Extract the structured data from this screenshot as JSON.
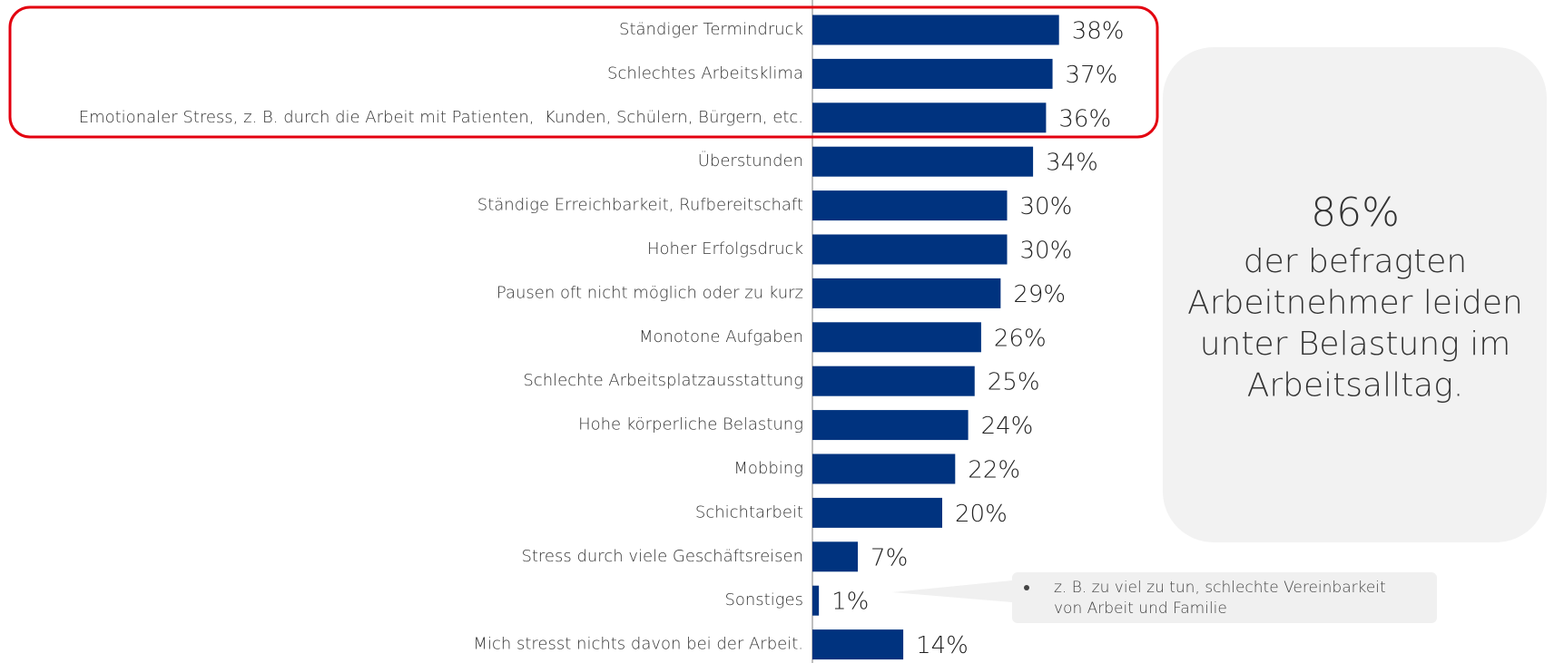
{
  "chart_data": {
    "type": "bar",
    "orientation": "horizontal",
    "categories": [
      "Ständiger Termindruck",
      "Schlechtes Arbeitsklima",
      "Emotionaler Stress, z. B. durch die Arbeit mit Patienten,  Kunden, Schülern, Bürgern, etc.",
      "Überstunden",
      "Ständige Erreichbarkeit, Rufbereitschaft",
      "Hoher Erfolgsdruck",
      "Pausen oft nicht möglich oder zu kurz",
      "Monotone Aufgaben",
      "Schlechte Arbeitsplatzausstattung",
      "Hohe körperliche Belastung",
      "Mobbing",
      "Schichtarbeit",
      "Stress durch viele Geschäftsreisen",
      "Sonstiges",
      "Mich stresst nichts davon bei der Arbeit."
    ],
    "values": [
      38,
      37,
      36,
      34,
      30,
      30,
      29,
      26,
      25,
      24,
      22,
      20,
      7,
      1,
      14
    ],
    "value_labels": [
      "38%",
      "37%",
      "36%",
      "34%",
      "30%",
      "30%",
      "29%",
      "26%",
      "25%",
      "24%",
      "22%",
      "20%",
      "7%",
      "1%",
      "14%"
    ],
    "color": "#00337f",
    "xlim": [
      0,
      100
    ],
    "highlight_color": "#e3000f",
    "annotation": {
      "headline": "86%",
      "lines": [
        "der befragten",
        "Arbeitnehmer leiden",
        "unter Belastung im",
        "Arbeitsalltag."
      ]
    },
    "note": {
      "lines": [
        "z. B. zu viel zu tun, schlechte Vereinbarkeit",
        "von Arbeit und Familie"
      ]
    }
  }
}
